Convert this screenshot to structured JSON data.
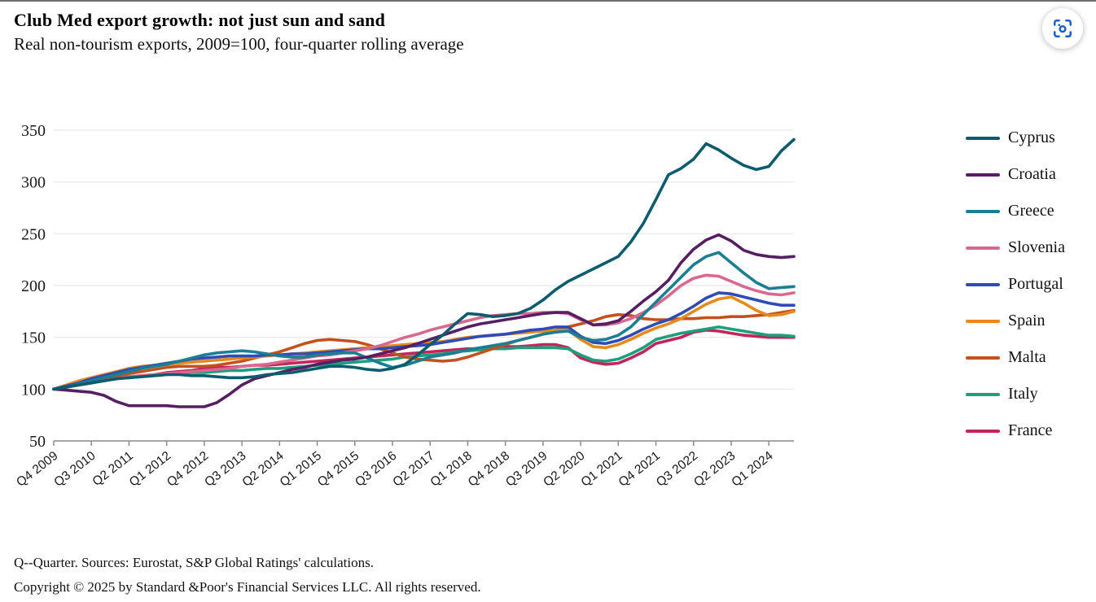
{
  "header": {
    "title": "Club Med export growth: not just sun and sand",
    "subtitle": "Real non-tourism exports, 2009=100, four-quarter rolling average"
  },
  "toolbar": {
    "screenshot_icon": "screenshot-capture-icon"
  },
  "footer": {
    "line1": "Q--Quarter. Sources: Eurostat, S&P Global Ratings' calculations.",
    "line2": "Copyright © 2025 by Standard &Poor's Financial Services LLC. All rights reserved."
  },
  "chart_data": {
    "type": "line",
    "title": "Club Med export growth: not just sun and sand",
    "subtitle": "Real non-tourism exports, 2009=100, four-quarter rolling average",
    "x_unit": "quarter",
    "x_start": "Q4 2009",
    "x_end": "Q3 2024",
    "points_per_series": 60,
    "x_tick_every_n_points": 3,
    "x_tick_labels": [
      "Q4 2009",
      "Q3 2010",
      "Q2 2011",
      "Q1 2012",
      "Q4 2012",
      "Q3 2013",
      "Q2 2014",
      "Q1 2015",
      "Q4 2015",
      "Q3 2016",
      "Q2 2017",
      "Q1 2018",
      "Q4 2018",
      "Q3 2019",
      "Q2 2020",
      "Q1 2021",
      "Q4 2021",
      "Q3 2022",
      "Q2 2023",
      "Q1 2024"
    ],
    "ylim": [
      50,
      350
    ],
    "y_ticks": [
      50,
      100,
      150,
      200,
      250,
      300,
      350
    ],
    "grid": "horizontal",
    "legend_position": "right",
    "colors": {
      "axis": "#8a8a8a",
      "gridline": "#e8e8e8",
      "tick_text": "#1a1a1a"
    },
    "series": [
      {
        "name": "Cyprus",
        "color": "#0d5c6d",
        "values": [
          100,
          102,
          104,
          106,
          108,
          110,
          111,
          112,
          113,
          114,
          114,
          113,
          113,
          112,
          111,
          111,
          112,
          114,
          115,
          116,
          118,
          120,
          122,
          122,
          121,
          119,
          118,
          120,
          124,
          133,
          143,
          152,
          163,
          173,
          172,
          170,
          171,
          173,
          178,
          186,
          196,
          204,
          210,
          216,
          222,
          228,
          242,
          260,
          283,
          307,
          313,
          322,
          337,
          331,
          323,
          316,
          312,
          315,
          330,
          341
        ]
      },
      {
        "name": "Croatia",
        "color": "#571f63",
        "values": [
          100,
          99,
          98,
          97,
          94,
          88,
          84,
          84,
          84,
          84,
          83,
          83,
          83,
          87,
          95,
          104,
          110,
          113,
          116,
          119,
          121,
          124,
          126,
          128,
          129,
          131,
          134,
          137,
          140,
          144,
          148,
          152,
          156,
          160,
          163,
          165,
          167,
          169,
          171,
          173,
          174,
          174,
          168,
          162,
          163,
          166,
          175,
          185,
          194,
          205,
          222,
          235,
          244,
          249,
          243,
          234,
          230,
          228,
          227,
          228
        ]
      },
      {
        "name": "Greece",
        "color": "#1c7e92",
        "values": [
          100,
          102,
          105,
          108,
          111,
          114,
          117,
          120,
          122,
          124,
          127,
          130,
          133,
          135,
          136,
          137,
          136,
          134,
          132,
          131,
          131,
          133,
          134,
          135,
          135,
          130,
          125,
          121,
          123,
          127,
          131,
          133,
          135,
          138,
          140,
          142,
          144,
          147,
          150,
          153,
          155,
          156,
          150,
          147,
          148,
          152,
          160,
          172,
          184,
          196,
          208,
          220,
          228,
          232,
          222,
          212,
          203,
          197,
          198,
          199
        ]
      },
      {
        "name": "Slovenia",
        "color": "#d9688f",
        "values": [
          100,
          102,
          104,
          106,
          108,
          110,
          112,
          113,
          114,
          115,
          116,
          117,
          118,
          119,
          120,
          122,
          123,
          124,
          126,
          128,
          130,
          132,
          133,
          135,
          137,
          139,
          142,
          146,
          150,
          153,
          157,
          160,
          163,
          166,
          169,
          171,
          172,
          173,
          173,
          174,
          174,
          173,
          167,
          162,
          162,
          164,
          168,
          174,
          181,
          190,
          200,
          207,
          210,
          209,
          204,
          199,
          195,
          192,
          191,
          193
        ]
      },
      {
        "name": "Portugal",
        "color": "#2f4cb4",
        "values": [
          100,
          103,
          106,
          110,
          113,
          116,
          119,
          121,
          123,
          125,
          127,
          129,
          130,
          131,
          132,
          132,
          132,
          133,
          133,
          134,
          134,
          135,
          136,
          137,
          138,
          139,
          139,
          140,
          141,
          142,
          143,
          145,
          147,
          149,
          151,
          152,
          153,
          155,
          157,
          158,
          160,
          160,
          151,
          145,
          144,
          147,
          152,
          158,
          163,
          167,
          173,
          180,
          188,
          193,
          192,
          189,
          186,
          183,
          181,
          181
        ]
      },
      {
        "name": "Spain",
        "color": "#e68a1e",
        "values": [
          100,
          104,
          108,
          111,
          114,
          117,
          120,
          122,
          123,
          124,
          125,
          126,
          127,
          128,
          129,
          130,
          131,
          132,
          133,
          134,
          135,
          136,
          137,
          138,
          139,
          140,
          141,
          142,
          143,
          144,
          145,
          146,
          148,
          150,
          151,
          152,
          153,
          154,
          155,
          156,
          157,
          157,
          148,
          141,
          140,
          143,
          148,
          154,
          159,
          163,
          168,
          175,
          182,
          187,
          189,
          183,
          176,
          171,
          172,
          175
        ]
      },
      {
        "name": "Malta",
        "color": "#c2511d",
        "values": [
          100,
          102,
          104,
          106,
          109,
          112,
          115,
          117,
          119,
          121,
          122,
          122,
          122,
          123,
          125,
          127,
          130,
          133,
          136,
          140,
          144,
          147,
          148,
          147,
          146,
          143,
          139,
          135,
          131,
          129,
          128,
          127,
          128,
          131,
          135,
          139,
          143,
          147,
          150,
          153,
          157,
          160,
          163,
          166,
          170,
          172,
          171,
          168,
          167,
          167,
          168,
          168,
          169,
          169,
          170,
          170,
          171,
          172,
          174,
          176
        ]
      },
      {
        "name": "Italy",
        "color": "#1ba07b",
        "values": [
          100,
          102,
          104,
          106,
          108,
          110,
          111,
          112,
          113,
          114,
          115,
          116,
          116,
          117,
          118,
          118,
          119,
          120,
          120,
          121,
          122,
          123,
          124,
          125,
          126,
          127,
          128,
          129,
          131,
          132,
          133,
          134,
          136,
          137,
          138,
          139,
          139,
          140,
          140,
          140,
          140,
          139,
          133,
          128,
          127,
          129,
          134,
          140,
          148,
          151,
          154,
          156,
          158,
          160,
          158,
          156,
          154,
          152,
          152,
          151
        ]
      },
      {
        "name": "France",
        "color": "#c1255b",
        "values": [
          100,
          102,
          105,
          107,
          109,
          111,
          112,
          113,
          114,
          116,
          117,
          118,
          120,
          121,
          121,
          122,
          123,
          123,
          124,
          125,
          126,
          127,
          128,
          129,
          130,
          131,
          132,
          133,
          134,
          135,
          136,
          137,
          138,
          139,
          139,
          140,
          141,
          141,
          142,
          143,
          143,
          140,
          130,
          126,
          124,
          125,
          130,
          136,
          144,
          147,
          150,
          155,
          157,
          156,
          154,
          152,
          151,
          150,
          150,
          150
        ]
      }
    ]
  }
}
